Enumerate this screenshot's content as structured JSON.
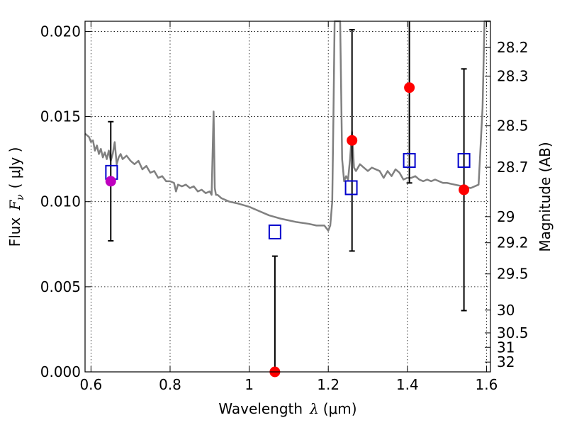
{
  "chart_data": {
    "type": "scatter",
    "title": "",
    "xlabel": {
      "prefix": "Wavelength",
      "symbol": "λ",
      "unit": "(μm)"
    },
    "ylabel": {
      "prefix": "Flux",
      "symbol": "F",
      "subscript": "ν",
      "unit": "( μJy )"
    },
    "ylabel_right": "Magnitude (AB)",
    "xlim": [
      0.585,
      1.61
    ],
    "ylim": [
      0.0,
      0.0206
    ],
    "x_ticks": [
      0.6,
      0.8,
      1.0,
      1.2,
      1.4,
      1.6
    ],
    "x_tick_labels": [
      "0.6",
      "0.8",
      "1",
      "1.2",
      "1.4",
      "1.6"
    ],
    "y_ticks": [
      0.0,
      0.005,
      0.01,
      0.015,
      0.02
    ],
    "y_tick_labels": [
      "0.000",
      "0.005",
      "0.010",
      "0.015",
      "0.020"
    ],
    "right_ticks": [
      28.2,
      28.3,
      28.5,
      28.7,
      29,
      29.2,
      29.5,
      30,
      30.5,
      31,
      32
    ],
    "right_tick_labels": [
      "28.2",
      "28.3",
      "28.5",
      "28.7",
      "29",
      "29.2",
      "29.5",
      "30",
      "30.5",
      "31",
      "32"
    ],
    "grid": true,
    "colors": {
      "model": "#808080",
      "observed": "#ff0000",
      "observed_first": "#bf00bf",
      "model_photometry": "#0000cc",
      "errorbar": "#000000"
    },
    "model_spectrum": {
      "x": [
        0.585,
        0.595,
        0.6,
        0.605,
        0.61,
        0.615,
        0.62,
        0.625,
        0.63,
        0.635,
        0.64,
        0.645,
        0.65,
        0.655,
        0.66,
        0.665,
        0.67,
        0.675,
        0.68,
        0.69,
        0.7,
        0.71,
        0.72,
        0.73,
        0.74,
        0.75,
        0.76,
        0.77,
        0.78,
        0.79,
        0.8,
        0.81,
        0.815,
        0.82,
        0.83,
        0.84,
        0.85,
        0.86,
        0.87,
        0.88,
        0.89,
        0.9,
        0.905,
        0.91,
        0.913,
        0.916,
        0.92,
        0.93,
        0.95,
        0.97,
        1.0,
        1.02,
        1.05,
        1.08,
        1.1,
        1.12,
        1.15,
        1.17,
        1.19,
        1.2,
        1.205,
        1.21,
        1.213,
        1.216,
        1.22,
        1.225,
        1.23,
        1.235,
        1.24,
        1.245,
        1.25,
        1.255,
        1.26,
        1.265,
        1.27,
        1.28,
        1.29,
        1.3,
        1.31,
        1.32,
        1.33,
        1.34,
        1.35,
        1.36,
        1.37,
        1.38,
        1.39,
        1.4,
        1.41,
        1.42,
        1.43,
        1.44,
        1.45,
        1.46,
        1.47,
        1.48,
        1.49,
        1.5,
        1.52,
        1.54,
        1.56,
        1.58,
        1.59,
        1.595,
        1.6,
        1.61
      ],
      "y": [
        0.014,
        0.0138,
        0.0135,
        0.0136,
        0.013,
        0.0133,
        0.0128,
        0.0131,
        0.0126,
        0.0129,
        0.0125,
        0.013,
        0.0124,
        0.0128,
        0.0135,
        0.0122,
        0.0126,
        0.0128,
        0.0125,
        0.0127,
        0.0124,
        0.0122,
        0.0124,
        0.0119,
        0.0121,
        0.0117,
        0.0118,
        0.0114,
        0.0115,
        0.0112,
        0.0112,
        0.0111,
        0.0106,
        0.011,
        0.0109,
        0.011,
        0.0108,
        0.0109,
        0.0106,
        0.0107,
        0.0105,
        0.0106,
        0.0104,
        0.0153,
        0.0108,
        0.0104,
        0.0104,
        0.0102,
        0.01,
        0.0099,
        0.0097,
        0.0095,
        0.0092,
        0.009,
        0.0089,
        0.0088,
        0.0087,
        0.0086,
        0.0086,
        0.0083,
        0.0086,
        0.01,
        0.015,
        0.0206,
        0.0206,
        0.0206,
        0.0206,
        0.0125,
        0.0112,
        0.0115,
        0.0113,
        0.0125,
        0.0141,
        0.012,
        0.0118,
        0.0122,
        0.012,
        0.0118,
        0.012,
        0.0119,
        0.0118,
        0.0114,
        0.0118,
        0.0115,
        0.0119,
        0.0117,
        0.0113,
        0.0114,
        0.0114,
        0.0115,
        0.0113,
        0.0112,
        0.0113,
        0.0112,
        0.0113,
        0.0112,
        0.0111,
        0.0111,
        0.011,
        0.0109,
        0.0108,
        0.011,
        0.0155,
        0.0206,
        0.0206,
        0.0206
      ]
    },
    "observed": [
      {
        "x": 0.65,
        "y": 0.0112,
        "err": 0.0035
      },
      {
        "x": 1.065,
        "y": 0.0,
        "err": 0.0068
      },
      {
        "x": 1.26,
        "y": 0.0136,
        "err": 0.0065
      },
      {
        "x": 1.405,
        "y": 0.0167,
        "err": 0.0056
      },
      {
        "x": 1.543,
        "y": 0.0107,
        "err": 0.0071
      }
    ],
    "model_photometry": [
      {
        "x": 0.652,
        "y": 0.0117
      },
      {
        "x": 1.065,
        "y": 0.0082
      },
      {
        "x": 1.258,
        "y": 0.0108
      },
      {
        "x": 1.405,
        "y": 0.0124
      },
      {
        "x": 1.543,
        "y": 0.0124
      }
    ]
  }
}
